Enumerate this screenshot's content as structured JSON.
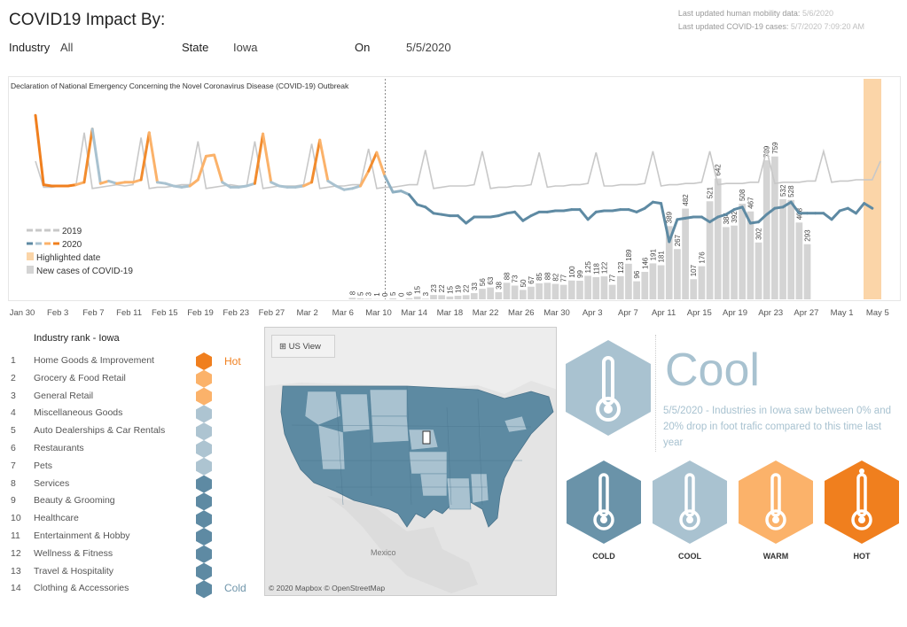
{
  "header": {
    "title": "COVID19 Impact By:",
    "updated_mobility_label": "Last updated human mobility data:",
    "updated_mobility_value": "5/6/2020",
    "updated_cases_label": "Last updated COVID-19 cases:",
    "updated_cases_value": "5/7/2020 7:09:20 AM"
  },
  "filters": {
    "industry_label": "Industry",
    "industry_value": "All",
    "state_label": "State",
    "state_value": "Iowa",
    "on_label": "On",
    "on_value": "5/5/2020"
  },
  "chart_data": {
    "type": "line",
    "annotation": "Declaration of National Emergency Concerning the Novel Coronavirus Disease (COVID-19) Outbreak",
    "x_tick_labels": [
      "Jan 30",
      "Feb 3",
      "Feb 7",
      "Feb 11",
      "Feb 15",
      "Feb 19",
      "Feb 23",
      "Feb 27",
      "Mar 2",
      "Mar 6",
      "Mar 10",
      "Mar 14",
      "Mar 18",
      "Mar 22",
      "Mar 26",
      "Mar 30",
      "Apr 3",
      "Apr 7",
      "Apr 11",
      "Apr 15",
      "Apr 19",
      "Apr 23",
      "Apr 27",
      "May 1",
      "May 5"
    ],
    "legend": [
      {
        "label": "2019",
        "color": "#c8c8c8"
      },
      {
        "label": "2020",
        "color": "#5e8aa3"
      },
      {
        "label": "Highlighted date",
        "color": "#fbd5a8"
      },
      {
        "label": "New cases of COVID-19",
        "color": "#d4d4d4"
      }
    ],
    "highlighted_date": "May 5",
    "new_cases": {
      "start_date": "Mar 9",
      "values": [
        8,
        5,
        3,
        1,
        0,
        5,
        0,
        6,
        15,
        3,
        23,
        22,
        15,
        19,
        22,
        33,
        56,
        63,
        38,
        88,
        73,
        50,
        67,
        85,
        88,
        82,
        77,
        100,
        99,
        125,
        118,
        122,
        77,
        123,
        189,
        96,
        146,
        191,
        181,
        389,
        267,
        482,
        107,
        176,
        521,
        642,
        384,
        392,
        508,
        467,
        302,
        739,
        759,
        532,
        528,
        408,
        293
      ]
    },
    "series": [
      {
        "name": "2019",
        "color": "#c8c8c8",
        "values": [
          0.55,
          0.34,
          0.34,
          0.35,
          0.35,
          0.36,
          0.78,
          0.33,
          0.34,
          0.35,
          0.36,
          0.35,
          0.36,
          0.74,
          0.33,
          0.34,
          0.34,
          0.35,
          0.36,
          0.36,
          0.71,
          0.33,
          0.34,
          0.35,
          0.36,
          0.35,
          0.35,
          0.71,
          0.33,
          0.34,
          0.35,
          0.35,
          0.35,
          0.36,
          0.69,
          0.33,
          0.34,
          0.35,
          0.35,
          0.36,
          0.36,
          0.65,
          0.33,
          0.34,
          0.34,
          0.35,
          0.36,
          0.36,
          0.64,
          0.33,
          0.34,
          0.35,
          0.35,
          0.35,
          0.36,
          0.63,
          0.33,
          0.34,
          0.34,
          0.35,
          0.35,
          0.36,
          0.62,
          0.34,
          0.35,
          0.35,
          0.36,
          0.36,
          0.37,
          0.62,
          0.35,
          0.35,
          0.36,
          0.36,
          0.36,
          0.37,
          0.63,
          0.35,
          0.36,
          0.36,
          0.37,
          0.37,
          0.38,
          0.63,
          0.36,
          0.37,
          0.37,
          0.37,
          0.38,
          0.38,
          0.64,
          0.37,
          0.38,
          0.38,
          0.38,
          0.39,
          0.39,
          0.63,
          0.38,
          0.39,
          0.39,
          0.4,
          0.4,
          0.4,
          0.55
        ]
      },
      {
        "name": "2020",
        "color": "#5e8aa3",
        "values": [
          0.92,
          0.36,
          0.35,
          0.35,
          0.35,
          0.36,
          0.38,
          0.81,
          0.37,
          0.39,
          0.37,
          0.38,
          0.38,
          0.4,
          0.78,
          0.38,
          0.37,
          0.35,
          0.34,
          0.35,
          0.4,
          0.59,
          0.6,
          0.38,
          0.34,
          0.34,
          0.35,
          0.37,
          0.77,
          0.38,
          0.35,
          0.34,
          0.34,
          0.35,
          0.38,
          0.72,
          0.39,
          0.35,
          0.32,
          0.33,
          0.35,
          0.47,
          0.62,
          0.43,
          0.3,
          0.31,
          0.28,
          0.2,
          0.18,
          0.13,
          0.12,
          0.11,
          0.11,
          0.05,
          0.1,
          0.1,
          0.1,
          0.11,
          0.13,
          0.14,
          0.07,
          0.11,
          0.14,
          0.14,
          0.15,
          0.15,
          0.16,
          0.16,
          0.08,
          0.14,
          0.15,
          0.15,
          0.16,
          0.16,
          0.14,
          0.17,
          0.22,
          0.21,
          -0.1,
          0.08,
          0.09,
          0.1,
          0.1,
          0.06,
          0.1,
          0.12,
          0.16,
          0.18,
          0.05,
          0.06,
          0.12,
          0.17,
          0.18,
          0.22,
          0.13,
          0.13,
          0.13,
          0.13,
          0.08,
          0.15,
          0.17,
          0.13,
          0.21,
          0.17
        ]
      }
    ]
  },
  "rank": {
    "title": "Industry rank - Iowa",
    "hot_label": "Hot",
    "cold_label": "Cold",
    "items": [
      {
        "num": "1",
        "label": "Home Goods & Improvement",
        "color": "#f07f1e"
      },
      {
        "num": "2",
        "label": "Grocery & Food Retail",
        "color": "#fbb26a"
      },
      {
        "num": "3",
        "label": "General Retail",
        "color": "#fbb26a"
      },
      {
        "num": "4",
        "label": "Miscellaneous Goods",
        "color": "#adc4d1"
      },
      {
        "num": "5",
        "label": "Auto Dealerships & Car Rentals",
        "color": "#adc4d1"
      },
      {
        "num": "6",
        "label": "Restaurants",
        "color": "#adc4d1"
      },
      {
        "num": "7",
        "label": "Pets",
        "color": "#adc4d1"
      },
      {
        "num": "8",
        "label": "Services",
        "color": "#5e8aa3"
      },
      {
        "num": "9",
        "label": "Beauty & Grooming",
        "color": "#5e8aa3"
      },
      {
        "num": "10",
        "label": "Healthcare",
        "color": "#5e8aa3"
      },
      {
        "num": "11",
        "label": "Entertainment & Hobby",
        "color": "#5e8aa3"
      },
      {
        "num": "12",
        "label": "Wellness & Fitness",
        "color": "#5e8aa3"
      },
      {
        "num": "13",
        "label": "Travel & Hospitality",
        "color": "#5e8aa3"
      },
      {
        "num": "14",
        "label": "Clothing & Accessories",
        "color": "#5e8aa3"
      }
    ]
  },
  "map": {
    "view_button": "US View",
    "credit": "© 2020 Mapbox © OpenStreetMap",
    "country_label": "Mexico"
  },
  "status": {
    "big": "Cool",
    "description": "5/5/2020 - Industries in Iowa saw between 0% and 20% drop in foot trafic compared to this time last year",
    "hexes": [
      {
        "label": "COLD",
        "color": "#6a93a9"
      },
      {
        "label": "COOL",
        "color": "#a9c2d0"
      },
      {
        "label": "WARM",
        "color": "#fbb26a"
      },
      {
        "label": "HOT",
        "color": "#f07f1e"
      }
    ]
  }
}
